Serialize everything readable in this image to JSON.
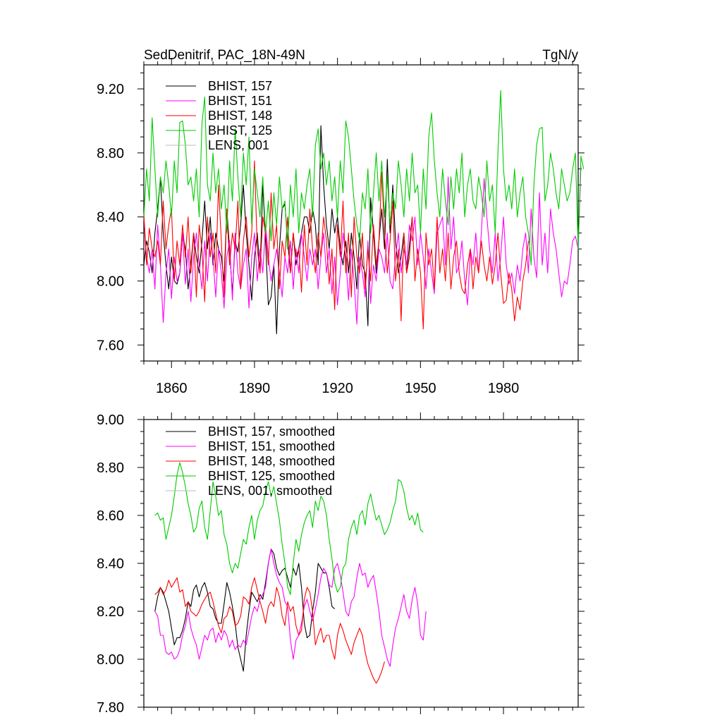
{
  "chart_data": [
    {
      "type": "line",
      "title": "SedDenitrif, PAC_18N-49N",
      "units": "TgN/y",
      "xlim": [
        1850,
        2007
      ],
      "ylim": [
        7.5,
        9.35
      ],
      "yticks": [
        7.6,
        8.0,
        8.4,
        8.8,
        9.2
      ],
      "ytick_labels": [
        "7.60",
        "8.00",
        "8.40",
        "8.80",
        "9.20"
      ],
      "xticks": [
        1860,
        1890,
        1920,
        1950,
        1980
      ],
      "xtick_labels": [
        "1860",
        "1890",
        "1920",
        "1950",
        "1980"
      ],
      "series": [
        {
          "name": "BHIST, 157",
          "color": "#000000",
          "start": 1850,
          "values": [
            8.1,
            8.25,
            8.18,
            8.05,
            8.3,
            8.45,
            8.64,
            8.3,
            8.1,
            7.95,
            8.15,
            8.0,
            7.98,
            8.05,
            8.3,
            8.2,
            7.95,
            8.1,
            8.3,
            8.15,
            8.05,
            8.25,
            8.5,
            8.2,
            8.4,
            8.1,
            8.3,
            8.2,
            8.15,
            8.0,
            8.45,
            8.2,
            7.92,
            8.25,
            8.18,
            8.35,
            8.6,
            8.3,
            8.1,
            7.88,
            8.15,
            8.3,
            8.05,
            8.6,
            8.25,
            7.85,
            7.9,
            8.1,
            7.67,
            8.2,
            8.45,
            8.48,
            8.25,
            8.05,
            8.3,
            8.1,
            8.2,
            8.3,
            8.4,
            8.4,
            8.3,
            8.45,
            8.35,
            8.1,
            8.97,
            8.6,
            8.35,
            8.2,
            8.45,
            8.3,
            8.4,
            8.2,
            8.1,
            8.25,
            8.05,
            8.3,
            8.15,
            7.95,
            8.3,
            8.1,
            8.05,
            7.72,
            8.52,
            8.3,
            8.05,
            8.25,
            8.45,
            8.2,
            8.76,
            8.3,
            8.6,
            8.25,
            8.05,
            8.15,
            8.3,
            8.05,
            8.22,
            8.4
          ]
        },
        {
          "name": "BHIST, 151",
          "color": "#ff00ff",
          "start": 1850,
          "values": [
            8.4,
            8.15,
            8.05,
            8.2,
            7.95,
            8.35,
            8.1,
            7.74,
            8.05,
            8.2,
            7.89,
            8.15,
            8.0,
            8.05,
            8.3,
            7.98,
            8.2,
            7.87,
            8.15,
            8.3,
            8.1,
            7.95,
            8.25,
            8.0,
            8.3,
            8.15,
            7.9,
            8.2,
            8.05,
            7.83,
            8.15,
            8.25,
            7.88,
            8.3,
            8.05,
            7.95,
            8.1,
            8.2,
            7.83,
            8.15,
            8.3,
            8.0,
            8.2,
            8.05,
            8.35,
            8.15,
            8.0,
            8.1,
            8.2,
            8.05,
            7.9,
            8.15,
            8.05,
            8.25,
            7.95,
            8.2,
            8.05,
            8.3,
            8.15,
            8.0,
            8.2,
            8.1,
            8.2,
            7.95,
            8.15,
            8.3,
            8.05,
            8.2,
            7.92,
            8.15,
            7.85,
            8.05,
            8.3,
            8.15,
            7.88,
            8.2,
            8.0,
            7.73,
            8.15,
            8.05,
            7.9,
            8.25,
            7.86,
            8.1,
            8.0,
            8.2,
            8.15,
            8.05,
            8.3,
            8.0,
            7.95,
            8.15,
            8.3,
            8.05,
            8.2,
            8.1,
            8.35,
            8.25,
            8.4,
            8.1,
            8.3,
            8.15,
            7.95,
            8.2,
            8.05,
            7.92,
            8.3,
            8.35,
            8.4,
            8.1,
            8.65,
            8.2,
            8.4,
            8.05,
            8.1,
            8.25,
            8.0,
            7.85,
            8.2,
            8.1,
            8.3,
            8.05,
            8.3,
            8.64,
            8.4,
            8.2,
            8.05,
            8.3,
            8.0,
            8.15,
            8.4,
            8.1,
            7.98,
            8.05,
            7.92,
            8.1,
            8.0,
            8.2,
            8.3,
            8.05,
            8.45,
            8.15,
            8.02,
            8.55,
            8.1,
            8.3,
            8.05,
            8.45,
            8.3,
            8.2,
            8.05,
            7.9,
            8.0,
            7.98,
            8.1,
            8.25,
            8.28,
            8.2,
            8.72
          ]
        },
        {
          "name": "BHIST, 148",
          "color": "#ff0000",
          "start": 1850,
          "values": [
            8.42,
            8.1,
            8.33,
            8.2,
            8.15,
            8.25,
            8.1,
            8.5,
            8.2,
            8.35,
            8.45,
            8.0,
            8.25,
            8.1,
            8.35,
            8.15,
            8.4,
            8.05,
            8.3,
            7.9,
            8.35,
            8.2,
            7.87,
            8.4,
            8.15,
            8.3,
            8.05,
            8.6,
            8.25,
            7.9,
            8.45,
            8.1,
            8.3,
            8.2,
            8.5,
            7.95,
            8.25,
            8.4,
            8.15,
            8.3,
            8.75,
            8.2,
            8.05,
            8.4,
            8.3,
            8.1,
            8.55,
            8.2,
            8.35,
            7.95,
            8.25,
            8.15,
            8.4,
            8.05,
            8.3,
            8.15,
            8.2,
            7.93,
            8.35,
            8.1,
            8.45,
            8.2,
            8.05,
            8.3,
            8.15,
            8.4,
            8.25,
            7.98,
            8.2,
            7.82,
            8.35,
            8.15,
            8.5,
            8.05,
            8.3,
            7.9,
            8.4,
            8.15,
            8.05,
            8.3,
            7.95,
            8.2,
            8.0,
            8.35,
            8.1,
            8.25,
            8.68,
            8.3,
            8.05,
            8.25,
            8.5,
            8.0,
            8.2,
            7.75,
            8.3,
            8.05,
            8.15,
            8.4,
            8.0,
            8.2,
            8.05,
            7.7,
            8.3,
            8.1,
            8.2,
            7.95,
            8.4,
            8.05,
            8.2,
            8.0,
            8.3,
            7.95,
            8.15,
            8.25,
            8.05,
            7.95,
            7.92,
            8.1,
            8.2,
            7.95,
            8.15,
            8.05,
            8.25,
            8.1,
            8.0,
            8.15,
            7.98,
            8.1,
            8.3,
            8.05,
            7.86,
            7.88,
            8.05,
            7.95,
            7.75,
            7.9,
            7.82,
            8.0,
            8.1,
            8.25
          ]
        },
        {
          "name": "BHIST, 125",
          "color": "#00cc00",
          "start": 1850,
          "values": [
            8.4,
            8.7,
            8.5,
            9.02,
            8.7,
            8.4,
            8.65,
            8.55,
            8.75,
            8.6,
            8.4,
            8.75,
            8.55,
            8.99,
            9.0,
            8.85,
            8.6,
            8.65,
            8.5,
            8.7,
            8.4,
            8.98,
            9.15,
            8.6,
            8.5,
            8.8,
            8.55,
            8.7,
            8.45,
            8.6,
            8.3,
            8.75,
            8.5,
            8.95,
            8.65,
            8.4,
            8.8,
            8.6,
            8.9,
            8.35,
            8.7,
            8.55,
            8.4,
            8.65,
            8.3,
            8.5,
            8.25,
            8.55,
            8.35,
            8.65,
            8.45,
            8.5,
            8.2,
            8.6,
            8.4,
            8.7,
            8.3,
            8.55,
            8.45,
            8.6,
            8.7,
            8.4,
            8.85,
            8.95,
            8.7,
            8.8,
            8.6,
            8.75,
            8.5,
            8.65,
            8.4,
            8.75,
            8.55,
            9.0,
            8.9,
            8.7,
            8.5,
            8.35,
            8.25,
            8.55,
            8.45,
            8.7,
            8.3,
            8.55,
            8.8,
            8.5,
            8.75,
            8.4,
            8.65,
            8.35,
            8.55,
            8.45,
            8.75,
            8.6,
            8.4,
            8.7,
            8.5,
            8.8,
            8.55,
            8.6,
            8.3,
            8.7,
            8.45,
            8.9,
            9.05,
            8.75,
            8.55,
            8.4,
            8.7,
            8.5,
            8.35,
            8.65,
            8.45,
            8.7,
            8.55,
            8.8,
            8.4,
            8.6,
            8.7,
            8.5,
            8.45,
            8.65,
            8.55,
            8.4,
            8.75,
            8.5,
            8.6,
            8.3,
            8.8,
            9.19,
            8.7,
            8.5,
            8.6,
            8.45,
            8.7,
            8.4,
            8.55,
            8.65,
            8.4,
            8.3,
            8.1,
            8.6,
            8.85,
            8.95,
            8.96,
            8.5,
            8.6,
            8.8,
            8.7,
            8.55,
            8.45,
            8.7,
            8.6,
            8.5,
            8.55,
            8.7,
            8.8,
            8.2,
            8.78,
            8.7
          ]
        }
      ],
      "legend": [
        {
          "label": "BHIST, 157",
          "color": "#000000"
        },
        {
          "label": "BHIST, 151",
          "color": "#ff00ff"
        },
        {
          "label": "BHIST, 148",
          "color": "#ff0000"
        },
        {
          "label": "BHIST, 125",
          "color": "#00cc00"
        },
        {
          "label": "LENS, 001",
          "color": "#bbbbbb"
        }
      ]
    },
    {
      "type": "line",
      "title": "",
      "xlim": [
        1850,
        2007
      ],
      "ylim": [
        7.8,
        9.0
      ],
      "yticks": [
        7.8,
        8.0,
        8.2,
        8.4,
        8.6,
        8.8,
        9.0
      ],
      "ytick_labels": [
        "7.80",
        "8.00",
        "8.20",
        "8.40",
        "8.60",
        "8.80",
        "9.00"
      ],
      "series": [
        {
          "name": "BHIST, 157, smoothed",
          "color": "#000000",
          "start": 1854,
          "values": [
            8.2,
            8.26,
            8.3,
            8.28,
            8.24,
            8.2,
            8.13,
            8.06,
            8.09,
            8.09,
            8.12,
            8.17,
            8.24,
            8.22,
            8.29,
            8.31,
            8.26,
            8.3,
            8.32,
            8.28,
            8.22,
            8.21,
            8.17,
            8.15,
            8.15,
            8.23,
            8.32,
            8.28,
            8.22,
            8.15,
            8.05,
            8.0,
            7.95,
            8.1,
            8.2,
            8.28,
            8.26,
            8.24,
            8.27,
            8.25,
            8.32,
            8.4,
            8.46,
            8.44,
            8.38,
            8.35,
            8.37,
            8.38,
            8.34,
            8.3,
            8.38,
            8.35,
            8.4,
            8.3,
            8.15,
            8.09,
            8.1,
            8.2,
            8.28,
            8.4,
            8.38,
            8.36,
            8.36,
            8.3,
            8.22,
            8.21
          ]
        },
        {
          "name": "BHIST, 151, smoothed",
          "color": "#ff00ff",
          "start": 1854,
          "values": [
            8.2,
            8.18,
            8.1,
            8.1,
            8.03,
            8.02,
            8.03,
            8.0,
            8.01,
            8.04,
            8.1,
            8.14,
            8.2,
            8.13,
            8.09,
            8.06,
            8.0,
            8.05,
            8.1,
            8.08,
            8.12,
            8.13,
            8.07,
            8.11,
            8.08,
            8.12,
            8.1,
            8.05,
            8.08,
            8.04,
            8.06,
            8.05,
            8.08,
            8.06,
            8.12,
            8.18,
            8.22,
            8.2,
            8.25,
            8.27,
            8.3,
            8.4,
            8.46,
            8.4,
            8.35,
            8.32,
            8.3,
            8.24,
            8.22,
            8.08,
            8.0,
            8.08,
            8.1,
            8.15,
            8.22,
            8.25,
            8.2,
            8.16,
            8.21,
            8.27,
            8.34,
            8.38,
            8.36,
            8.31,
            8.3,
            8.38,
            8.4,
            8.35,
            8.28,
            8.2,
            8.18,
            8.24,
            8.26,
            8.34,
            8.4,
            8.35,
            8.36,
            8.3,
            8.33,
            8.35,
            8.28,
            8.2,
            8.1,
            8.05,
            8.0,
            7.97,
            8.06,
            8.13,
            8.17,
            8.22,
            8.27,
            8.2,
            8.17,
            8.25,
            8.3,
            8.23,
            8.1,
            8.08,
            8.2
          ]
        },
        {
          "name": "BHIST, 148, smoothed",
          "color": "#ff0000",
          "start": 1854,
          "values": [
            8.27,
            8.28,
            8.3,
            8.27,
            8.29,
            8.33,
            8.3,
            8.32,
            8.34,
            8.28,
            8.29,
            8.22,
            8.24,
            8.2,
            8.19,
            8.18,
            8.2,
            8.23,
            8.25,
            8.27,
            8.28,
            8.24,
            8.19,
            8.14,
            8.11,
            8.17,
            8.18,
            8.22,
            8.2,
            8.14,
            8.15,
            8.18,
            8.26,
            8.25,
            8.23,
            8.3,
            8.34,
            8.29,
            8.24,
            8.2,
            8.15,
            8.22,
            8.24,
            8.22,
            8.3,
            8.26,
            8.18,
            8.14,
            8.24,
            8.2,
            8.22,
            8.14,
            8.1,
            8.12,
            8.25,
            8.3,
            8.28,
            8.2,
            8.06,
            8.1,
            8.13,
            8.07,
            8.1,
            8.1,
            8.04,
            8.0,
            8.1,
            8.15,
            8.12,
            8.08,
            8.05,
            8.02,
            8.07,
            8.1,
            8.13,
            8.1,
            8.03,
            7.98,
            7.95,
            7.92,
            7.9,
            7.92,
            7.95,
            7.99
          ]
        },
        {
          "name": "BHIST, 125, smoothed",
          "color": "#00cc00",
          "start": 1854,
          "values": [
            8.6,
            8.61,
            8.58,
            8.59,
            8.5,
            8.55,
            8.6,
            8.68,
            8.77,
            8.82,
            8.78,
            8.72,
            8.65,
            8.6,
            8.53,
            8.55,
            8.63,
            8.66,
            8.55,
            8.5,
            8.62,
            8.74,
            8.68,
            8.6,
            8.62,
            8.52,
            8.48,
            8.4,
            8.36,
            8.4,
            8.38,
            8.44,
            8.5,
            8.48,
            8.55,
            8.6,
            8.5,
            8.58,
            8.62,
            8.64,
            8.7,
            8.74,
            8.68,
            8.72,
            8.65,
            8.58,
            8.48,
            8.4,
            8.3,
            8.27,
            8.4,
            8.5,
            8.45,
            8.52,
            8.57,
            8.6,
            8.62,
            8.55,
            8.66,
            8.62,
            8.68,
            8.66,
            8.6,
            8.5,
            8.42,
            8.32,
            8.28,
            8.3,
            8.38,
            8.4,
            8.5,
            8.55,
            8.58,
            8.52,
            8.6,
            8.62,
            8.56,
            8.65,
            8.69,
            8.63,
            8.58,
            8.6,
            8.56,
            8.52,
            8.54,
            8.57,
            8.62,
            8.66,
            8.75,
            8.74,
            8.7,
            8.63,
            8.58,
            8.6,
            8.56,
            8.61,
            8.54,
            8.53
          ]
        }
      ],
      "legend": [
        {
          "label": "BHIST, 157, smoothed",
          "color": "#000000"
        },
        {
          "label": "BHIST, 151, smoothed",
          "color": "#ff00ff"
        },
        {
          "label": "BHIST, 148, smoothed",
          "color": "#ff0000"
        },
        {
          "label": "BHIST, 125, smoothed",
          "color": "#00cc00"
        },
        {
          "label": "LENS, 001, smoothed",
          "color": "#bbbbbb"
        }
      ]
    }
  ]
}
